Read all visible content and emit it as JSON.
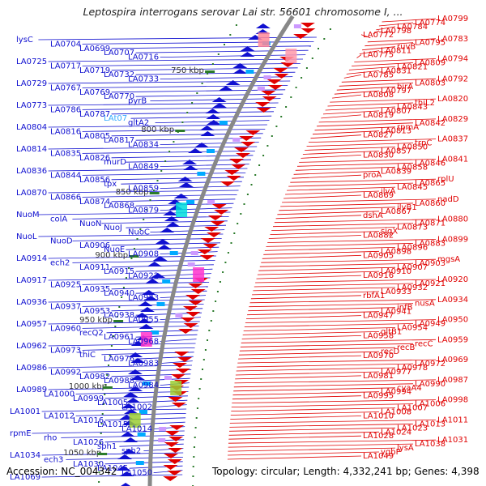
{
  "title": "Leptospira interrogans serovar Lai str. 56601 chromosome I, ...",
  "footer": {
    "accession": "Accession: NC_004342",
    "topology": "Topology: circular; Length: 4,332,241 bp; Genes: 4,398"
  },
  "colors": {
    "reverse_strand": "#1010d0",
    "forward_strand": "#e00000",
    "highlight_label": "#33aaff",
    "backbone": "#888888",
    "tick": "#2a7a2a"
  },
  "axis": {
    "ticks": [
      "750 kbp",
      "800 kbp",
      "850 kbp",
      "900 kbp",
      "950 kbp",
      "1000 kbp",
      "1050 kbp"
    ]
  },
  "left_labels": [
    "lysC",
    "LA0704",
    "LA0699",
    "LA0707",
    "LA0716",
    "LA0725",
    "LA0717",
    "LA0719",
    "LA0732",
    "LA0733",
    "LA0729",
    "LA0767",
    "LA0769",
    "LA0770",
    "pyrB",
    "LA0773",
    "LA0786",
    "LA0787",
    "LAt07",
    "gltA2",
    "LA0804",
    "LA0816",
    "LA0805",
    "LA0817",
    "LA0834",
    "LA0814",
    "LA0835",
    "LA0826",
    "murD",
    "LA0849",
    "LA0836",
    "LA0844",
    "LA0856",
    "tpx",
    "LA0859",
    "LA0870",
    "LA0866",
    "LA0874",
    "LA0868",
    "LA0879",
    "NuoM",
    "colA",
    "NuoN",
    "NuoJ",
    "NuoC",
    "NuoL",
    "NuoD",
    "LA0906",
    "NuoE",
    "LA0908",
    "LA0914",
    "ech2",
    "LA0911",
    "LA0915",
    "LA0922",
    "LA0917",
    "LA0925",
    "LA0935",
    "LA0940",
    "LA0923",
    "LA0936",
    "LA0937",
    "LA0953",
    "LA0938",
    "LA0955",
    "LA0957",
    "LA0960",
    "recQ2",
    "LA0961",
    "LA0968",
    "LA0962",
    "LA0973",
    "thiC",
    "LA0976",
    "LA0983",
    "LA0986",
    "LA0992",
    "LA0982",
    "LA0988",
    "LA0984",
    "LA0989",
    "LA1000",
    "LA0999",
    "LA1005",
    "LA1002",
    "LA1001",
    "LA1012",
    "LA1016",
    "LA1015",
    "LA1014",
    "rpmE",
    "rho",
    "LA1026",
    "sph1",
    "sph2",
    "LA1034",
    "ech3",
    "LA1030",
    "LA1045",
    "LA1050",
    "LA1069"
  ],
  "right_labels": [
    "LA0799",
    "LA0774",
    "LA0784",
    "LA0798",
    "LA0772",
    "LA0783",
    "LA0795",
    "ruvB",
    "LA0811",
    "LA0775",
    "LA0794",
    "LA0809",
    "LA0821",
    "LA0831",
    "LA0785",
    "LA0792",
    "LA0803",
    "birA",
    "LA0797",
    "LA0808",
    "LA0820",
    "thiL2",
    "LA0843",
    "LA0807",
    "LA0819",
    "LA0829",
    "LA0842",
    "rpmA",
    "LA0813",
    "LA0827",
    "LA0837",
    "trpC",
    "LA0850",
    "LA0857",
    "LA0830",
    "LA0841",
    "LA0846",
    "LA0858",
    "LA0839",
    "proA",
    "rplU",
    "LA0865",
    "LA0845",
    "ilvA",
    "LA0869",
    "nadD",
    "LA0860",
    "ilvB1",
    "LA0867",
    "dshA",
    "LA0880",
    "LA0871",
    "LA0873",
    "sigX",
    "LA0882",
    "LA0899",
    "LA0883",
    "LA0896",
    "LA0898",
    "LA0905",
    "mgsA",
    "LA0903",
    "LA0907",
    "LA0910",
    "LA0916",
    "LA0920",
    "LA0921",
    "LA0932",
    "LA0933",
    "rbfA1",
    "LA0934",
    "nusA",
    "infB",
    "LA0941",
    "LA0947",
    "LA0950",
    "LA0949",
    "LA0954",
    "gltB1",
    "LA0958",
    "LA0959",
    "recC",
    "recB",
    "recD",
    "LA0970",
    "LA0969",
    "LA0972",
    "LA0978",
    "LA0977",
    "LA0981",
    "LA0987",
    "LA0990",
    "cyaA4",
    "LA0994",
    "LA0995",
    "LA0998",
    "LA1006",
    "LA1007",
    "LA1008",
    "LA1010",
    "LA1011",
    "LA1013",
    "LA1023",
    "LA1024",
    "LA1028",
    "LA1031",
    "LA1038",
    "lysA",
    "ygbP",
    "LA1049"
  ]
}
